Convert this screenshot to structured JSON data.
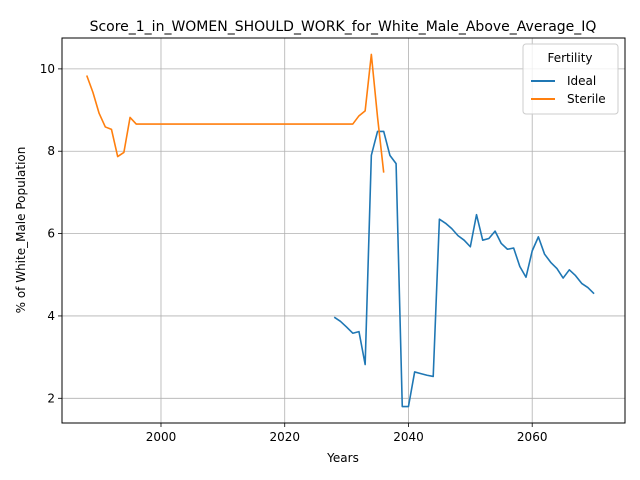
{
  "chart_data": {
    "type": "line",
    "title": "Score_1_in_WOMEN_SHOULD_WORK_for_White_Male_Above_Average_IQ",
    "xlabel": "Years",
    "ylabel": "% of White_Male Population",
    "xlim": [
      1984,
      2075
    ],
    "ylim": [
      1.4,
      10.75
    ],
    "xticks": [
      2000,
      2020,
      2040,
      2060
    ],
    "yticks": [
      2,
      4,
      6,
      8,
      10
    ],
    "grid": true,
    "legend": {
      "title": "Fertility",
      "placement": "top-right"
    },
    "series": [
      {
        "name": "Ideal",
        "color": "#1f77b4",
        "x": [
          2028,
          2029,
          2030,
          2031,
          2032,
          2033,
          2034,
          2035,
          2036,
          2037,
          2038,
          2039,
          2040,
          2041,
          2042,
          2043,
          2044,
          2045,
          2046,
          2047,
          2048,
          2049,
          2050,
          2051,
          2052,
          2053,
          2054,
          2055,
          2056,
          2057,
          2058,
          2059,
          2060,
          2061,
          2062,
          2063,
          2064,
          2065,
          2066,
          2067,
          2068,
          2069,
          2070
        ],
        "y": [
          3.97,
          3.87,
          3.73,
          3.58,
          3.62,
          2.82,
          7.9,
          8.48,
          8.48,
          7.9,
          7.7,
          1.8,
          1.8,
          2.64,
          2.6,
          2.56,
          2.53,
          6.35,
          6.25,
          6.12,
          5.95,
          5.84,
          5.68,
          6.46,
          5.84,
          5.88,
          6.06,
          5.76,
          5.62,
          5.65,
          5.2,
          4.94,
          5.58,
          5.92,
          5.5,
          5.3,
          5.15,
          4.92,
          5.12,
          4.98,
          4.79,
          4.69,
          4.54
        ]
      },
      {
        "name": "Sterile",
        "color": "#ff7f0e",
        "x": [
          1988,
          1989,
          1990,
          1991,
          1992,
          1993,
          1994,
          1995,
          1996,
          1997,
          1998,
          1999,
          2000,
          2005,
          2010,
          2015,
          2020,
          2025,
          2030,
          2031,
          2032,
          2033,
          2034,
          2035,
          2036
        ],
        "y": [
          9.84,
          9.43,
          8.92,
          8.59,
          8.53,
          7.87,
          7.97,
          8.82,
          8.66,
          8.66,
          8.66,
          8.66,
          8.66,
          8.66,
          8.66,
          8.66,
          8.66,
          8.66,
          8.66,
          8.66,
          8.86,
          8.98,
          10.35,
          8.83,
          7.48
        ]
      }
    ]
  }
}
